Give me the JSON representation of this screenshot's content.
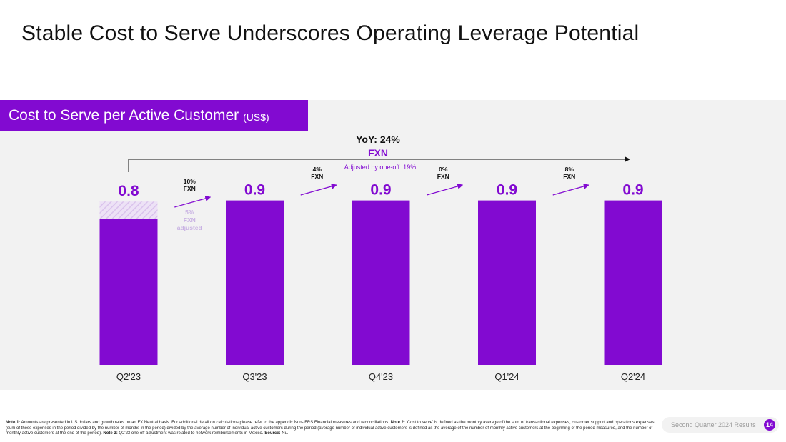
{
  "page": {
    "title": "Stable Cost to Serve Underscores Operating Leverage Potential",
    "chart_header": "Cost to Serve per Active Customer",
    "chart_header_unit": "(US$)"
  },
  "chart_data": {
    "type": "bar",
    "title": "Cost to Serve per Active Customer (US$)",
    "categories": [
      "Q2'23",
      "Q3'23",
      "Q4'23",
      "Q1'24",
      "Q2'24"
    ],
    "values": [
      0.8,
      0.9,
      0.9,
      0.9,
      0.9
    ],
    "value_labels": [
      "0.8",
      "0.9",
      "0.9",
      "0.9",
      "0.9"
    ],
    "adjusted_segment": {
      "category": "Q2'23",
      "labels": [
        "5%",
        "FXN",
        "adjusted"
      ]
    },
    "growth_arrows": [
      {
        "from": "Q2'23",
        "to": "Q3'23",
        "pct": "10%",
        "label": "FXN"
      },
      {
        "from": "Q3'23",
        "to": "Q4'23",
        "pct": "4%",
        "label": "FXN"
      },
      {
        "from": "Q4'23",
        "to": "Q1'24",
        "pct": "0%",
        "label": "FXN"
      },
      {
        "from": "Q1'24",
        "to": "Q2'24",
        "pct": "8%",
        "label": "FXN"
      }
    ],
    "yoy": {
      "label": "YoY: 24%",
      "basis": "FXN",
      "adjusted": "Adjusted by one-off: 19%"
    },
    "colors": {
      "bar": "#820ad1",
      "hatch": "#d9c2ec",
      "hatch_bg": "#ede2f6",
      "label": "#820ad1",
      "adjusted_text": "#c9b3e3"
    }
  },
  "footnote": {
    "note1_label": "Note 1:",
    "note1": " Amounts are presented in US dollars and growth rates on an FX Neutral basis. For additional detail on calculations please refer to the appendix Non-IFRS Financial measures and reconciliations. ",
    "note2_label": "Note 2:",
    "note2": " 'Cost to serve' is defined as the monthly average of the sum of transactional expenses, customer support and operations expenses (sum of these expenses in the period divided by the number of months in the period) divided by the average number of individual active customers during the period (average number of individual active customers is defined as the average of the number of monthly active customers at the beginning of the period measured, and the number of monthly active customers at the end of the period). ",
    "note3_label": "Note 3:",
    "note3": " Q2'23 one-off adjustment was related to network reimbursements in Mexico. ",
    "source_label": "Source:",
    "source": " Nu."
  },
  "footer": {
    "label": "Second Quarter 2024 Results",
    "page_number": "14"
  }
}
